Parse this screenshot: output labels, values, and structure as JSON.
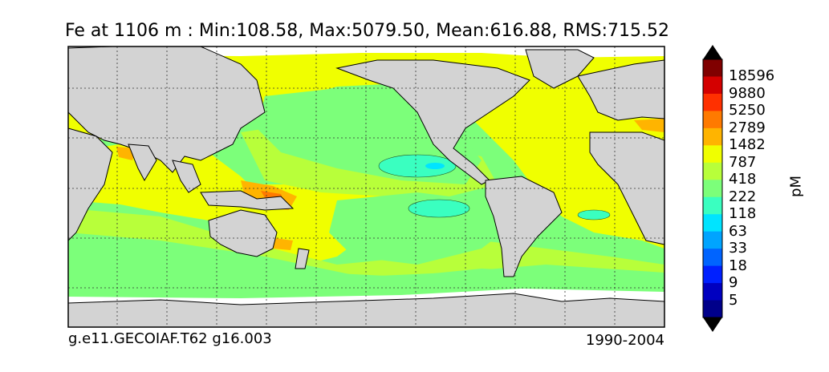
{
  "title": "Fe at 1106 m : Min:108.58, Max:5079.50, Mean:616.88, RMS:715.52",
  "footer": {
    "left": "g.e11.GECOIAF.T62 g16.003",
    "right": "1990-2004"
  },
  "colorbar": {
    "unit": "pM",
    "labels": [
      "18596",
      "9880",
      "5250",
      "2789",
      "1482",
      "787",
      "418",
      "222",
      "118",
      "63",
      "33",
      "18",
      "9",
      "5"
    ],
    "colors": [
      "#800000",
      "#d40000",
      "#ff3000",
      "#ff7a00",
      "#ffb400",
      "#f0ff00",
      "#b8ff3a",
      "#7cff7a",
      "#3affc0",
      "#00e4ff",
      "#00a4ff",
      "#0064ff",
      "#0020ff",
      "#0000c0",
      "#00008a"
    ],
    "extend_top": "#000000",
    "extend_bottom": "#000000"
  },
  "palette": {
    "land": "#d3d3d3",
    "missing": "#ffffff",
    "frame": "#000000"
  }
}
